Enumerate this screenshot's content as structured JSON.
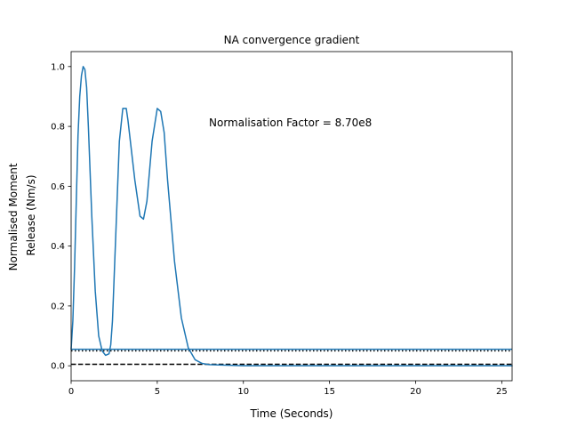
{
  "chart_data": {
    "type": "line",
    "title": "NA convergence gradient",
    "xlabel": "Time (Seconds)",
    "ylabel_lines": [
      "Normalised Moment",
      "Release (Nm/s)"
    ],
    "annotation": "Normalisation Factor = 8.70e8",
    "xlim": [
      0,
      25.6
    ],
    "ylim": [
      -0.05,
      1.05
    ],
    "xticks": [
      0,
      5,
      10,
      15,
      20,
      25
    ],
    "yticks": [
      0.0,
      0.2,
      0.4,
      0.6,
      0.8,
      1.0
    ],
    "xtick_labels": [
      "0",
      "5",
      "10",
      "15",
      "20",
      "25"
    ],
    "ytick_labels": [
      "0.0",
      "0.2",
      "0.4",
      "0.6",
      "0.8",
      "1.0"
    ],
    "grid": false,
    "series": [
      {
        "color": "#1f77b4",
        "x": [
          0,
          0.1,
          0.2,
          0.3,
          0.4,
          0.5,
          0.6,
          0.7,
          0.8,
          0.9,
          1.0,
          1.2,
          1.4,
          1.6,
          1.8,
          2.0,
          2.2,
          2.3,
          2.4,
          2.6,
          2.8,
          3.0,
          3.2,
          3.3,
          3.5,
          3.7,
          4.0,
          4.2,
          4.4,
          4.7,
          5.0,
          5.2,
          5.4,
          5.6,
          6.0,
          6.4,
          6.8,
          7.2,
          7.6,
          8.0,
          9.0,
          10.0,
          15.0,
          20.0,
          25.6
        ],
        "y": [
          0.055,
          0.15,
          0.33,
          0.55,
          0.77,
          0.9,
          0.97,
          1.0,
          0.99,
          0.93,
          0.8,
          0.5,
          0.25,
          0.1,
          0.05,
          0.035,
          0.04,
          0.07,
          0.15,
          0.45,
          0.75,
          0.86,
          0.86,
          0.82,
          0.72,
          0.62,
          0.5,
          0.49,
          0.55,
          0.75,
          0.86,
          0.85,
          0.78,
          0.62,
          0.35,
          0.16,
          0.06,
          0.02,
          0.008,
          0.004,
          0.002,
          0.0,
          0.0,
          0.0,
          0.0
        ]
      }
    ],
    "hlines": [
      {
        "y": 0.055,
        "color": "#1f77b4",
        "style": "solid"
      },
      {
        "y": 0.05,
        "color": "#000000",
        "style": "dotted"
      },
      {
        "y": 0.005,
        "color": "#000000",
        "style": "dashed"
      }
    ]
  }
}
